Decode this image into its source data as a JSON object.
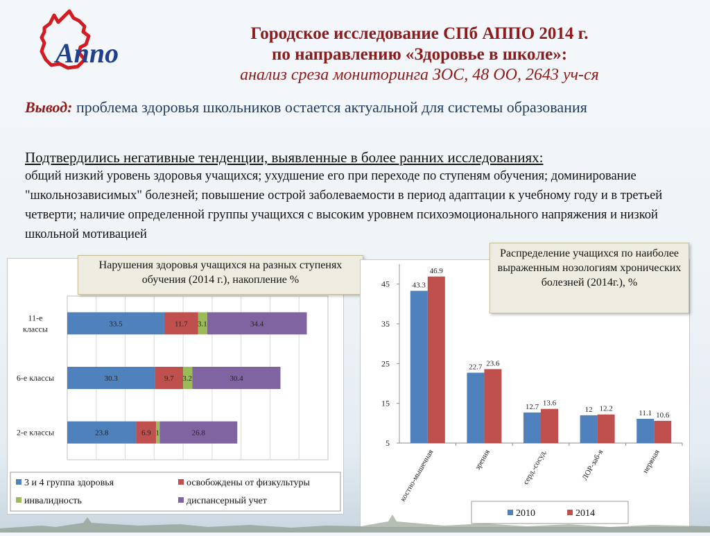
{
  "header": {
    "title_line1": "Городское исследование СПб АППО 2014 г.",
    "title_line2": "по направлению «Здоровье в школе»:",
    "subtitle": "анализ среза мониторинга ЗОС, 48 ОО, 2643 уч-ся",
    "logo_text": "Аппо"
  },
  "conclusion": {
    "label": "Вывод:",
    "text": " проблема здоровья школьников остается актуальной для системы образования"
  },
  "paragraph": {
    "heading": "Подтвердились негативные тенденции, выявленные в более ранних исследованиях:",
    "body": "общий низкий уровень здоровья учащихся; ухудшение его при переходе по ступеням обучения; доминирование \"школьнозависимых\" болезней; повышение острой заболеваемости в период адаптации к учебному году и в третьей четверти;  наличие определенной группы учащихся с высоким уровнем психоэмоционального напряжения и низкой школьной мотивацией"
  },
  "colors": {
    "blue": "#4f81bd",
    "red": "#c0504d",
    "green": "#9bbb59",
    "purple": "#8064a2",
    "title_red": "#8e1b1b"
  },
  "chart_data": [
    {
      "type": "bar",
      "orientation": "horizontal",
      "stacked": true,
      "title": "Нарушения здоровья учащихся на разных ступенях обучения  (2014 г.), накопление %",
      "categories": [
        "11-е классы",
        "6-е классы",
        "2-е классы"
      ],
      "series": [
        {
          "name": "3 и 4 группа здоровья",
          "color": "#4f81bd",
          "values": [
            33.5,
            30.3,
            23.8
          ]
        },
        {
          "name": "освобождены от физкультуры",
          "color": "#c0504d",
          "values": [
            11.7,
            9.7,
            6.9
          ]
        },
        {
          "name": "инвалидность",
          "color": "#9bbb59",
          "values": [
            3.1,
            3.2,
            1.2
          ]
        },
        {
          "name": "диспансерный учет",
          "color": "#8064a2",
          "values": [
            34.4,
            30.4,
            26.8
          ]
        }
      ],
      "value_labels": [
        [
          "33.5",
          "11.7",
          "3.1",
          "34.4"
        ],
        [
          "30.3",
          "9.7",
          "3.2",
          "30.4"
        ],
        [
          "23.8",
          "6.9",
          "1.2",
          "26.8"
        ]
      ],
      "xlim": [
        0,
        90
      ],
      "grid": true,
      "legend": "bottom"
    },
    {
      "type": "bar",
      "title": "Распределение учащихся по наиболее выраженным нозологиям хронических болезней (2014г.), %",
      "categories": [
        "костно-мышечная",
        "зрения",
        "серд.-сосуд.",
        "ЛОР-заб-я",
        "нервная"
      ],
      "series": [
        {
          "name": "2010",
          "color": "#4f81bd",
          "values": [
            43.3,
            22.7,
            12.7,
            12,
            11.1
          ]
        },
        {
          "name": "2014",
          "color": "#c0504d",
          "values": [
            46.9,
            23.6,
            13.6,
            12.2,
            10.6
          ]
        }
      ],
      "yticks": [
        "45",
        "35",
        "25",
        "15",
        "5"
      ],
      "ylim": [
        5,
        50
      ],
      "legend": "bottom"
    }
  ]
}
